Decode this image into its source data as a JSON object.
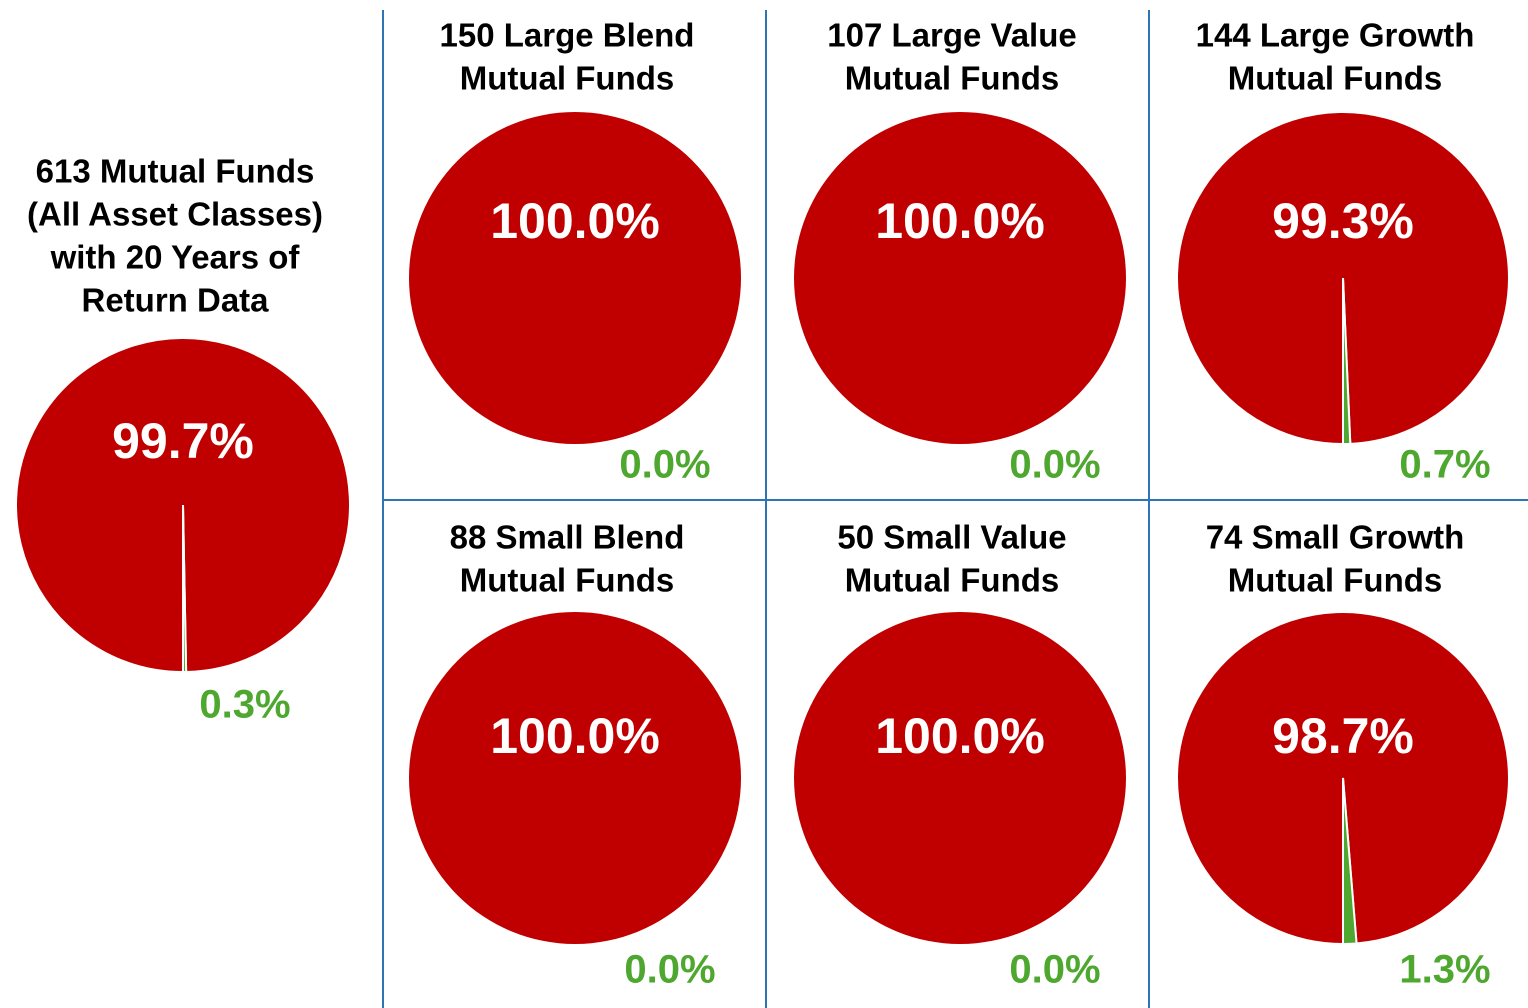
{
  "chart_data": [
    {
      "type": "pie",
      "title": [
        "613 Mutual Funds",
        "(All Asset Classes)",
        "with 20 Years of",
        "Return Data"
      ],
      "values": [
        99.7,
        0.3
      ],
      "value_labels": [
        "99.7%",
        "0.3%"
      ],
      "colors": [
        "#c00000",
        "#4ea72e"
      ]
    },
    {
      "type": "pie",
      "title": [
        "150 Large Blend",
        "Mutual Funds"
      ],
      "values": [
        100,
        0
      ],
      "value_labels": [
        "100.0%",
        "0.0%"
      ],
      "colors": [
        "#c00000",
        "#4ea72e"
      ]
    },
    {
      "type": "pie",
      "title": [
        "107 Large Value",
        "Mutual Funds"
      ],
      "values": [
        100,
        0
      ],
      "value_labels": [
        "100.0%",
        "0.0%"
      ],
      "colors": [
        "#c00000",
        "#4ea72e"
      ]
    },
    {
      "type": "pie",
      "title": [
        "144 Large Growth",
        "Mutual Funds"
      ],
      "values": [
        99.3,
        0.7
      ],
      "value_labels": [
        "99.3%",
        "0.7%"
      ],
      "colors": [
        "#c00000",
        "#4ea72e"
      ]
    },
    {
      "type": "pie",
      "title": [
        "88 Small Blend",
        "Mutual Funds"
      ],
      "values": [
        100,
        0
      ],
      "value_labels": [
        "100.0%",
        "0.0%"
      ],
      "colors": [
        "#c00000",
        "#4ea72e"
      ]
    },
    {
      "type": "pie",
      "title": [
        "50 Small Value",
        "Mutual Funds"
      ],
      "values": [
        100,
        0
      ],
      "value_labels": [
        "100.0%",
        "0.0%"
      ],
      "colors": [
        "#c00000",
        "#4ea72e"
      ]
    },
    {
      "type": "pie",
      "title": [
        "74 Small Growth",
        "Mutual Funds"
      ],
      "values": [
        98.7,
        1.3
      ],
      "value_labels": [
        "98.7%",
        "1.3%"
      ],
      "colors": [
        "#c00000",
        "#4ea72e"
      ]
    }
  ]
}
